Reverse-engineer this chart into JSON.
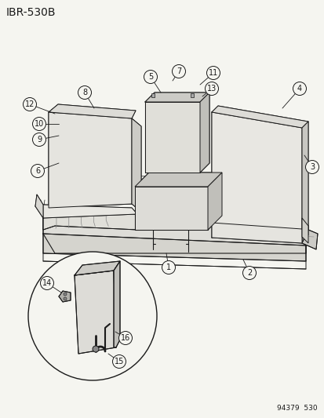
{
  "title": "IBR-530B",
  "footer": "94379  530",
  "bg_color": "#f5f5f0",
  "line_color": "#1a1a1a",
  "title_fontsize": 10,
  "callout_fontsize": 7,
  "footer_fontsize": 6.5
}
